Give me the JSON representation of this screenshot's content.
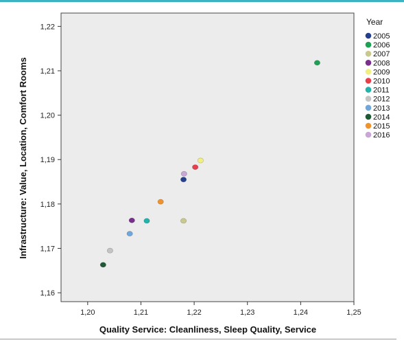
{
  "chart_data": {
    "type": "scatter",
    "title": "",
    "xlabel": "Quality Service: Cleanliness, Sleep Quality, Service",
    "ylabel": "Infrastructure: Value, Location, Comfort Rooms",
    "xlim": [
      1.195,
      1.25
    ],
    "ylim": [
      1.158,
      1.223
    ],
    "xticks": [
      1.2,
      1.21,
      1.22,
      1.23,
      1.24,
      1.25
    ],
    "xtick_labels": [
      "1,20",
      "1,21",
      "1,22",
      "1,23",
      "1,24",
      "1,25"
    ],
    "yticks": [
      1.16,
      1.17,
      1.18,
      1.19,
      1.2,
      1.21,
      1.22
    ],
    "ytick_labels": [
      "1,16",
      "1,17",
      "1,18",
      "1,19",
      "1,20",
      "1,21",
      "1,22"
    ],
    "grid": false,
    "background": "#ececec",
    "legend_title": "Year",
    "legend_position": "right",
    "series": [
      {
        "name": "2005",
        "color": "#263f8c",
        "x": 1.218,
        "y": 1.1855
      },
      {
        "name": "2006",
        "color": "#1ea155",
        "x": 1.2431,
        "y": 1.2118
      },
      {
        "name": "2007",
        "color": "#c9c98f",
        "x": 1.218,
        "y": 1.1762
      },
      {
        "name": "2008",
        "color": "#7a2f8f",
        "x": 1.2083,
        "y": 1.1763
      },
      {
        "name": "2009",
        "color": "#f2ef7e",
        "x": 1.2212,
        "y": 1.1898
      },
      {
        "name": "2010",
        "color": "#e8404a",
        "x": 1.2202,
        "y": 1.1883
      },
      {
        "name": "2011",
        "color": "#22b3ad",
        "x": 1.2111,
        "y": 1.1762
      },
      {
        "name": "2012",
        "color": "#c4c4c4",
        "x": 1.2042,
        "y": 1.1695
      },
      {
        "name": "2013",
        "color": "#6fa6db",
        "x": 1.2079,
        "y": 1.1733
      },
      {
        "name": "2014",
        "color": "#1e5a35",
        "x": 1.2029,
        "y": 1.1663
      },
      {
        "name": "2015",
        "color": "#f0932c",
        "x": 1.2137,
        "y": 1.1805
      },
      {
        "name": "2016",
        "color": "#c9a6d6",
        "x": 1.2181,
        "y": 1.1868
      }
    ]
  }
}
